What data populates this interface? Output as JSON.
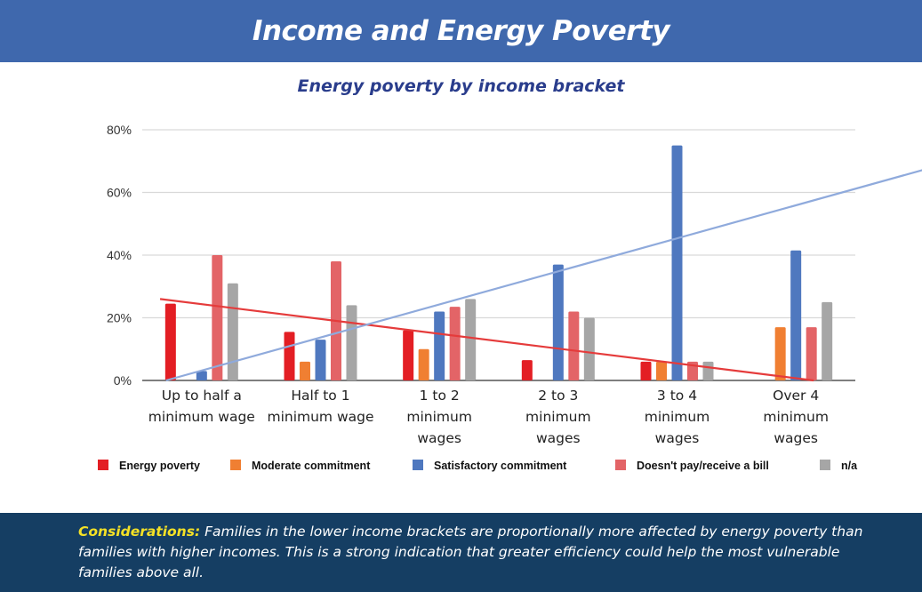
{
  "header": {
    "title": "Income and Energy Poverty"
  },
  "chart_title": "Energy poverty by income bracket",
  "footer": {
    "lead": "Considerations:",
    "text": "Families in the lower income brackets are proportionally more affected by energy poverty than families with higher incomes. This is a strong indication that greater efficiency could help the most vulnerable families above all."
  },
  "colors": {
    "energy_poverty": "#e31e24",
    "moderate": "#f07f32",
    "satisfactory": "#4f78bf",
    "doesnt_pay": "#e36467",
    "na": "#a6a6a6",
    "header_bg": "#3f68ad",
    "footer_bg": "#153e63",
    "footer_lead": "#f4e126"
  },
  "chart_data": {
    "type": "bar",
    "title": "Energy poverty by income bracket",
    "categories": [
      [
        "Up to half a",
        "minimum wage"
      ],
      [
        "Half to 1",
        "minimum wage"
      ],
      [
        "1 to 2",
        "minimum",
        "wages"
      ],
      [
        "2 to 3",
        "minimum",
        "wages"
      ],
      [
        "3 to 4",
        "minimum",
        "wages"
      ],
      [
        "Over 4",
        "minimum",
        "wages"
      ]
    ],
    "y_ticks": [
      "0%",
      "20%",
      "40%",
      "60%",
      "80%"
    ],
    "ylim": [
      0,
      80
    ],
    "grid": true,
    "legend_position": "bottom",
    "series": [
      {
        "name": "Energy poverty",
        "color": "#e31e24",
        "values": [
          24.5,
          15.5,
          16,
          6.5,
          6,
          0
        ]
      },
      {
        "name": "Moderate commitment",
        "color": "#f07f32",
        "values": [
          0,
          6,
          10,
          0,
          6,
          17
        ]
      },
      {
        "name": "Satisfactory commitment",
        "color": "#4f78bf",
        "values": [
          3,
          13,
          22,
          37,
          75,
          41.5
        ]
      },
      {
        "name": "Doesn't pay/receive a bill",
        "color": "#e36467",
        "values": [
          40,
          38,
          23.5,
          22,
          6,
          17
        ]
      },
      {
        "name": "n/a",
        "color": "#a6a6a6",
        "values": [
          31,
          24,
          26,
          20,
          6,
          25
        ]
      }
    ],
    "trendlines": [
      {
        "series": "Energy poverty",
        "color": "#e53b3b",
        "start": [
          -0.35,
          26
        ],
        "end": [
          5.15,
          0
        ]
      },
      {
        "series": "Satisfactory commitment",
        "color": "#8faadc",
        "start": [
          -0.3,
          0
        ],
        "end": [
          6.1,
          67.5
        ]
      }
    ]
  }
}
